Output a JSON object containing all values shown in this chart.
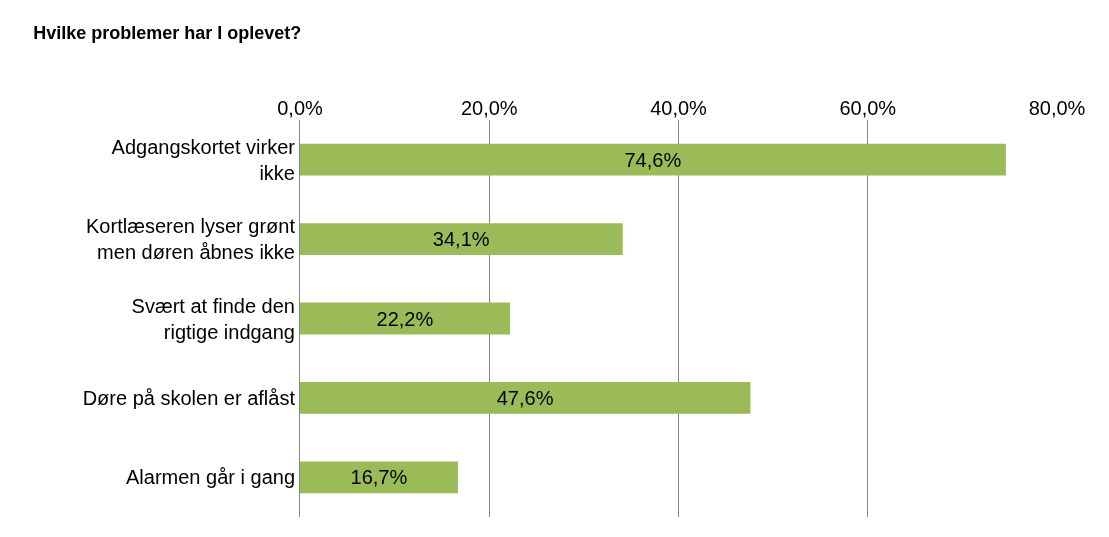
{
  "chart_data": {
    "type": "bar",
    "orientation": "horizontal",
    "title": "Hvilke problemer har I oplevet?",
    "categories": [
      "Adgangskortet virker ikke",
      "Kortlæseren lyser grønt men døren åbnes ikke",
      "Svært at finde den rigtige indgang",
      "Døre på skolen er aflåst",
      "Alarmen går i gang"
    ],
    "values": [
      74.6,
      34.1,
      22.2,
      47.6,
      16.7
    ],
    "value_labels": [
      "74,6%",
      "34,1%",
      "22,2%",
      "47,6%",
      "16,7%"
    ],
    "color": "#9bbb59",
    "xlim": [
      0,
      80
    ],
    "xticks": [
      {
        "value": 0,
        "label": "0,0%"
      },
      {
        "value": 20,
        "label": "20,0%"
      },
      {
        "value": 40,
        "label": "40,0%"
      },
      {
        "value": 60,
        "label": "60,0%"
      },
      {
        "value": 80,
        "label": "80,0%"
      }
    ],
    "grid": "x",
    "legend": false
  }
}
